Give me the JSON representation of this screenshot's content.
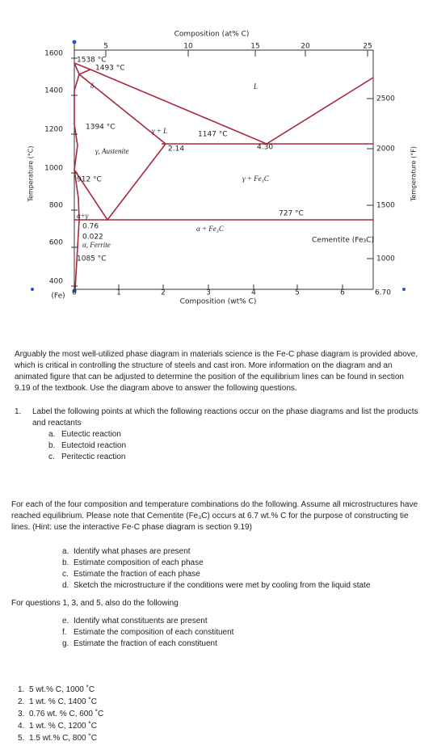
{
  "figure": {
    "top_axis_title": "Composition (at% C)",
    "top_ticks": [
      "5",
      "10",
      "15",
      "20",
      "25"
    ],
    "left_axis_title": "Temperature (°C)",
    "left_ticks": [
      "1600",
      "1400",
      "1200",
      "1000",
      "800",
      "600",
      "400"
    ],
    "bottom_axis_title": "Composition (wt% C)",
    "bottom_origin": "(Fe)",
    "bottom_ticks": [
      "0",
      "1",
      "2",
      "3",
      "4",
      "5",
      "6",
      "6.70"
    ],
    "right_axis_title": "Temperature (°F)",
    "right_ticks": [
      "2500",
      "2000",
      "1500",
      "1000"
    ],
    "labels": [
      "1538 °C",
      "1493 °C",
      "δ",
      "1394 °C",
      "γ + L",
      "1147 °C",
      "2.14",
      "4.30",
      "L",
      "γ, Austenite",
      "912 °C",
      "γ + Fe₃C",
      "727 °C",
      "α+γ",
      "0.76",
      "0.022",
      "α, Ferrite",
      "1085 °C",
      "α + Fe₃C",
      "Cementite (Fe₃C)"
    ]
  },
  "intro": "Arguably the most well-utilized phase diagram in materials science is the Fe-C phase diagram is provided above, which is critical in controlling the structure of steels and cast iron. More information on the diagram and an animated figure that can be adjusted to determine the position of the equilibrium lines can be found in section 9.19 of the textbook. Use the diagram above to answer the following questions.",
  "question1": {
    "marker": "1.",
    "text": "Label the following points at which the following reactions occur on the phase diagrams and list the products and reactants",
    "items": [
      {
        "marker": "a.",
        "text": "Eutectic reaction"
      },
      {
        "marker": "b.",
        "text": "Eutectoid reaction"
      },
      {
        "marker": "c.",
        "text": "Peritectic reaction"
      }
    ]
  },
  "instructions": "For each of the four composition and temperature combinations do the following. Assume all microstructures have reached equilibrium. Please note that Cementite (Fe₃C) occurs at 6.7 wt.% C for the purpose of constructing tie lines. (Hint: use the interactive Fe-C phase diagram is section 9.19)",
  "tasks": [
    {
      "marker": "a.",
      "text": "Identify what phases are present"
    },
    {
      "marker": "b.",
      "text": "Estimate composition of each phase"
    },
    {
      "marker": "c.",
      "text": "Estimate the fraction of each phase"
    },
    {
      "marker": "d.",
      "text": "Sketch the microstructure if the conditions were met by cooling from the liquid state"
    }
  ],
  "extra_heading": "For questions 1, 3, and 5, also do the following",
  "extra_tasks": [
    {
      "marker": "e.",
      "text": "Identify what constituents are present"
    },
    {
      "marker": "f.",
      "text": "Estimate the composition of each constituent"
    },
    {
      "marker": "g.",
      "text": "Estimate the fraction of each constituent"
    }
  ],
  "conditions": [
    {
      "marker": "1.",
      "text": "5 wt.% C, 1000 ˚C"
    },
    {
      "marker": "2.",
      "text": "1 wt. % C, 1400 ˚C"
    },
    {
      "marker": "3.",
      "text": "0.76 wt. % C, 600 ˚C"
    },
    {
      "marker": "4.",
      "text": "1 wt. % C, 1200 ˚C"
    },
    {
      "marker": "5.",
      "text": "1.5 wt.% C, 800 ˚C"
    }
  ]
}
